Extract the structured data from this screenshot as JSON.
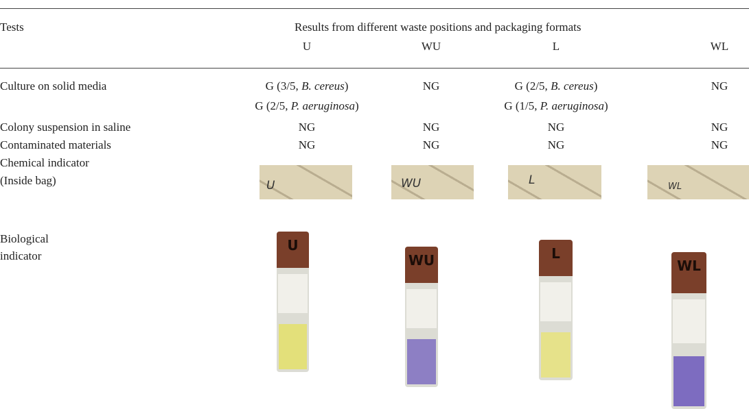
{
  "header": {
    "tests": "Tests",
    "results": "Results from different waste positions and packaging formats",
    "columns": [
      "U",
      "WU",
      "L",
      "WL"
    ]
  },
  "rows": [
    {
      "label": [
        "Culture on solid media"
      ],
      "cells": [
        [
          {
            "text": "G (3/5, ",
            "species": "B. cereus",
            "close": ")"
          },
          {
            "text": "G (2/5, ",
            "species": "P. aeruginosa",
            "close": ")"
          }
        ],
        [
          {
            "text": "NG"
          }
        ],
        [
          {
            "text": "G (2/5, ",
            "species": "B. cereus",
            "close": ")"
          },
          {
            "text": "G (1/5, ",
            "species": "P. aeruginosa",
            "close": ")"
          }
        ],
        [
          {
            "text": "NG"
          }
        ]
      ]
    },
    {
      "label": [
        "Colony suspension in saline"
      ],
      "cells": [
        [
          {
            "text": "NG"
          }
        ],
        [
          {
            "text": "NG"
          }
        ],
        [
          {
            "text": "NG"
          }
        ],
        [
          {
            "text": "NG"
          }
        ]
      ]
    },
    {
      "label": [
        "Contaminated materials"
      ],
      "cells": [
        [
          {
            "text": "NG"
          }
        ],
        [
          {
            "text": "NG"
          }
        ],
        [
          {
            "text": "NG"
          }
        ],
        [
          {
            "text": "NG"
          }
        ]
      ]
    },
    {
      "label": [
        "Chemical indicator",
        "(Inside bag)"
      ],
      "images": [
        "U",
        "WU",
        "L",
        "WL"
      ]
    },
    {
      "label": [
        "Biological",
        "indicator"
      ],
      "images": [
        "U",
        "WU",
        "L",
        "WL"
      ]
    }
  ]
}
